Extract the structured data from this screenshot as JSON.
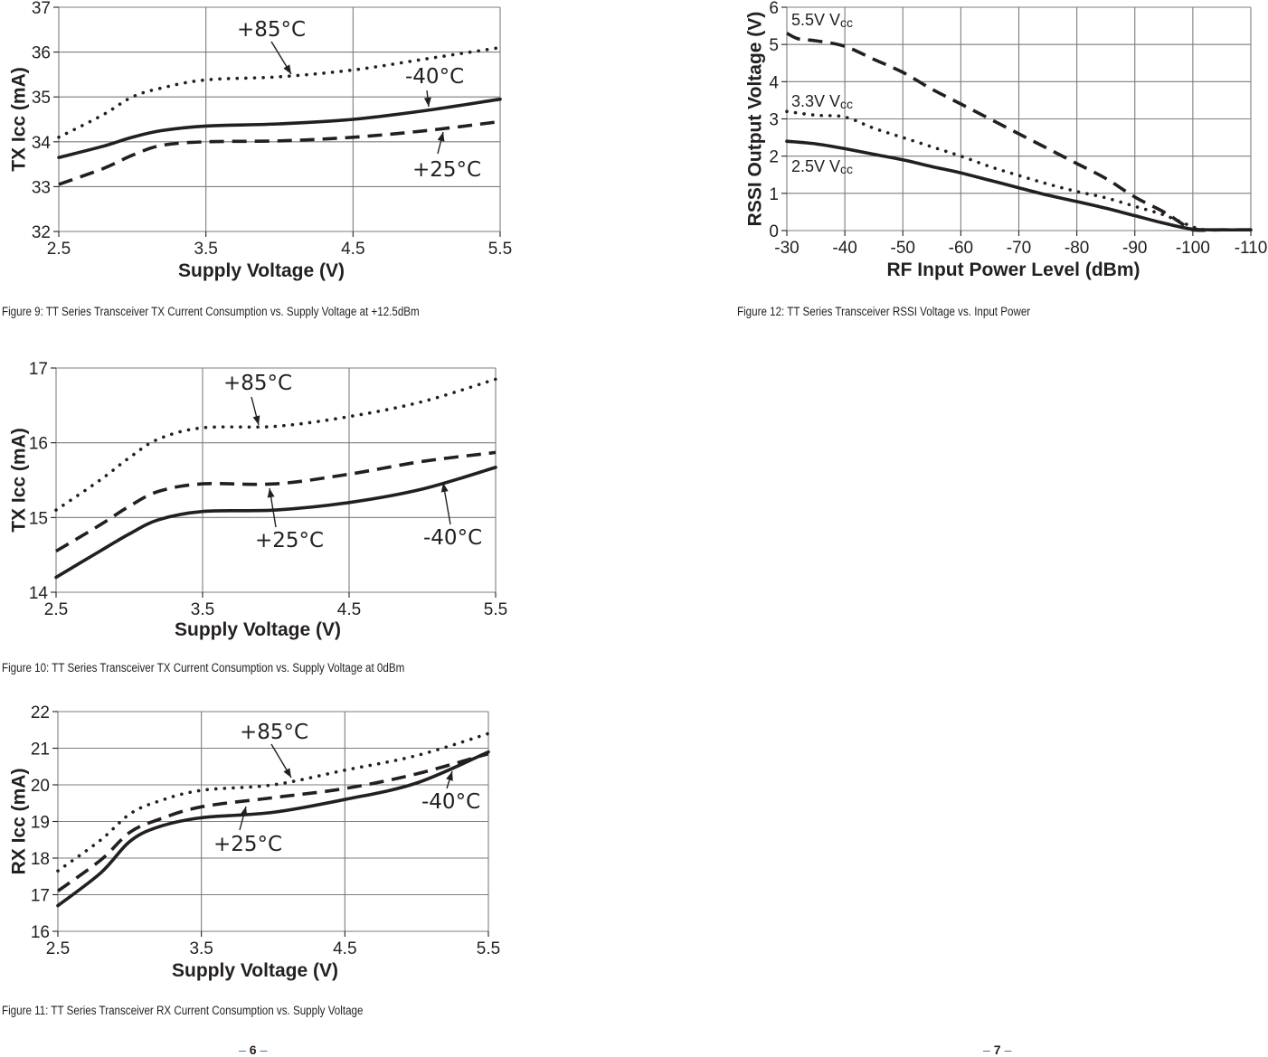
{
  "chart_data": [
    {
      "id": "fig9",
      "type": "line",
      "xlabel": "Supply Voltage (V)",
      "ylabel": "TX Icc (mA)",
      "xlim": [
        2.5,
        5.5
      ],
      "ylim": [
        32,
        37
      ],
      "xticks": [
        "2.5",
        "3.5",
        "4.5",
        "5.5"
      ],
      "yticks": [
        "32",
        "33",
        "34",
        "35",
        "36",
        "37"
      ],
      "grid": true,
      "series": [
        {
          "name": "+85°C",
          "style": "dotted",
          "x": [
            2.5,
            2.8,
            3.0,
            3.2,
            3.5,
            4.0,
            4.5,
            5.0,
            5.5
          ],
          "y": [
            34.1,
            34.6,
            35.0,
            35.2,
            35.38,
            35.45,
            35.6,
            35.85,
            36.1
          ]
        },
        {
          "name": "-40°C",
          "style": "solid",
          "x": [
            2.5,
            2.8,
            3.0,
            3.2,
            3.5,
            4.0,
            4.5,
            5.0,
            5.5
          ],
          "y": [
            33.65,
            33.9,
            34.1,
            34.25,
            34.35,
            34.4,
            34.5,
            34.7,
            34.95
          ]
        },
        {
          "name": "+25°C",
          "style": "dashed",
          "x": [
            2.5,
            2.8,
            3.0,
            3.2,
            3.5,
            4.0,
            4.5,
            5.0,
            5.5
          ],
          "y": [
            33.05,
            33.4,
            33.7,
            33.92,
            34.0,
            34.02,
            34.1,
            34.25,
            34.45
          ]
        }
      ],
      "annotations": [
        {
          "text": "+85°C",
          "series": "+85°C"
        },
        {
          "text": "-40°C",
          "series": "-40°C"
        },
        {
          "text": "+25°C",
          "series": "+25°C"
        }
      ]
    },
    {
      "id": "fig10",
      "type": "line",
      "xlabel": "Supply Voltage (V)",
      "ylabel": "TX Icc (mA)",
      "xlim": [
        2.5,
        5.5
      ],
      "ylim": [
        14,
        17
      ],
      "xticks": [
        "2.5",
        "3.5",
        "4.5",
        "5.5"
      ],
      "yticks": [
        "14",
        "15",
        "16",
        "17"
      ],
      "grid": true,
      "series": [
        {
          "name": "+85°C",
          "style": "dotted",
          "x": [
            2.5,
            2.8,
            3.0,
            3.2,
            3.5,
            4.0,
            4.5,
            5.0,
            5.5
          ],
          "y": [
            15.1,
            15.5,
            15.8,
            16.05,
            16.2,
            16.22,
            16.35,
            16.55,
            16.85
          ]
        },
        {
          "name": "+25°C",
          "style": "dashed",
          "x": [
            2.5,
            2.8,
            3.0,
            3.2,
            3.5,
            4.0,
            4.5,
            5.0,
            5.5
          ],
          "y": [
            14.55,
            14.9,
            15.15,
            15.35,
            15.45,
            15.45,
            15.58,
            15.75,
            15.87
          ]
        },
        {
          "name": "-40°C",
          "style": "solid",
          "x": [
            2.5,
            2.8,
            3.0,
            3.2,
            3.5,
            4.0,
            4.5,
            5.0,
            5.5
          ],
          "y": [
            14.2,
            14.55,
            14.78,
            14.97,
            15.08,
            15.1,
            15.2,
            15.38,
            15.67
          ]
        }
      ],
      "annotations": [
        {
          "text": "+85°C",
          "series": "+85°C"
        },
        {
          "text": "+25°C",
          "series": "+25°C"
        },
        {
          "text": "-40°C",
          "series": "-40°C"
        }
      ]
    },
    {
      "id": "fig11",
      "type": "line",
      "xlabel": "Supply Voltage (V)",
      "ylabel": "RX Icc (mA)",
      "xlim": [
        2.5,
        5.5
      ],
      "ylim": [
        16,
        22
      ],
      "xticks": [
        "2.5",
        "3.5",
        "4.5",
        "5.5"
      ],
      "yticks": [
        "16",
        "17",
        "18",
        "19",
        "20",
        "21",
        "22"
      ],
      "grid": true,
      "series": [
        {
          "name": "+85°C",
          "style": "dotted",
          "x": [
            2.5,
            2.8,
            3.0,
            3.2,
            3.5,
            4.0,
            4.5,
            5.0,
            5.5
          ],
          "y": [
            17.65,
            18.5,
            19.2,
            19.55,
            19.85,
            20.0,
            20.4,
            20.8,
            21.4
          ]
        },
        {
          "name": "+25°C",
          "style": "dashed",
          "x": [
            2.5,
            2.8,
            3.0,
            3.2,
            3.5,
            4.0,
            4.5,
            5.0,
            5.5
          ],
          "y": [
            17.1,
            17.95,
            18.7,
            19.05,
            19.4,
            19.65,
            19.9,
            20.3,
            20.85
          ]
        },
        {
          "name": "-40°C",
          "style": "solid",
          "x": [
            2.5,
            2.8,
            3.0,
            3.2,
            3.5,
            4.0,
            4.5,
            5.0,
            5.5
          ],
          "y": [
            16.7,
            17.6,
            18.45,
            18.85,
            19.1,
            19.25,
            19.6,
            20.05,
            20.9
          ]
        }
      ],
      "annotations": [
        {
          "text": "+85°C",
          "series": "+85°C"
        },
        {
          "text": "-40°C",
          "series": "-40°C"
        },
        {
          "text": "+25°C",
          "series": "+25°C"
        }
      ]
    },
    {
      "id": "fig12",
      "type": "line",
      "xlabel": "RF Input Power Level (dBm)",
      "ylabel": "RSSI Output  Voltage  (V)",
      "xlim": [
        -30,
        -110
      ],
      "ylim": [
        0,
        6
      ],
      "xticks": [
        "-30",
        "-40",
        "-50",
        "-60",
        "-70",
        "-80",
        "-90",
        "-100",
        "-110"
      ],
      "yticks": [
        "0",
        "1",
        "2",
        "3",
        "4",
        "5",
        "6"
      ],
      "grid": true,
      "series": [
        {
          "name": "5.5V Vcc",
          "style": "dashed",
          "x": [
            -30,
            -32,
            -35,
            -40,
            -45,
            -50,
            -55,
            -60,
            -65,
            -70,
            -75,
            -80,
            -85,
            -90,
            -95,
            -98,
            -100,
            -105,
            -110
          ],
          "y": [
            5.3,
            5.15,
            5.1,
            4.95,
            4.6,
            4.25,
            3.8,
            3.4,
            3.0,
            2.6,
            2.2,
            1.8,
            1.4,
            0.9,
            0.5,
            0.2,
            0.02,
            0.02,
            0.02
          ]
        },
        {
          "name": "3.3V Vcc",
          "style": "dotted",
          "x": [
            -30,
            -35,
            -40,
            -45,
            -50,
            -55,
            -60,
            -65,
            -70,
            -75,
            -80,
            -85,
            -90,
            -95,
            -100,
            -102
          ],
          "y": [
            3.2,
            3.1,
            3.05,
            2.75,
            2.5,
            2.25,
            2.0,
            1.72,
            1.48,
            1.25,
            1.05,
            0.88,
            0.65,
            0.42,
            0.1,
            0.02
          ]
        },
        {
          "name": "2.5V Vcc",
          "style": "solid",
          "x": [
            -30,
            -35,
            -40,
            -45,
            -50,
            -55,
            -60,
            -65,
            -70,
            -75,
            -80,
            -85,
            -90,
            -95,
            -100,
            -105,
            -110
          ],
          "y": [
            2.4,
            2.33,
            2.2,
            2.05,
            1.9,
            1.72,
            1.55,
            1.35,
            1.15,
            0.95,
            0.78,
            0.6,
            0.4,
            0.2,
            0.04,
            0.02,
            0.02
          ]
        }
      ],
      "labels": [
        {
          "text": "5.5V V",
          "sub": "cc"
        },
        {
          "text": "3.3V V",
          "sub": "cc"
        },
        {
          "text": "2.5V V",
          "sub": "cc"
        }
      ]
    }
  ],
  "captions": {
    "fig9": "Figure 9: TT Series Transceiver TX Current Consumption vs. Supply Voltage at +12.5dBm",
    "fig10": "Figure 10: TT Series Transceiver TX Current Consumption vs. Supply Voltage at 0dBm",
    "fig11": "Figure 11: TT Series Transceiver RX Current Consumption vs. Supply Voltage",
    "fig12": "Figure 12: TT Series Transceiver RSSI Voltage vs. Input Power"
  },
  "page_numbers": {
    "left": "6",
    "right": "7",
    "dash": "–"
  }
}
